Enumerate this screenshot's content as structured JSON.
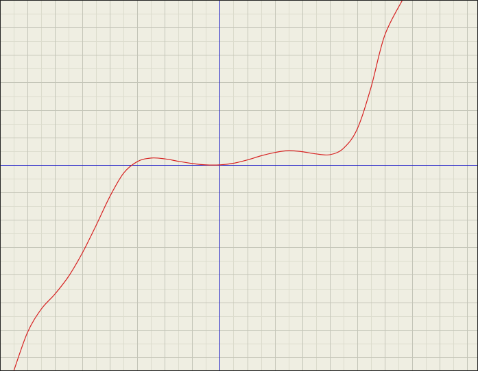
{
  "colors": {
    "background": "#efeee2",
    "grid_minor": "#dcdccd",
    "grid_major": "#c4c5b8",
    "axis": "#1f1fc8",
    "curve": "#d62020",
    "border": "#222222"
  },
  "chart_data": {
    "type": "line",
    "title": "",
    "xlabel": "",
    "ylabel": "",
    "grid": true,
    "grid_minor_step": 0.5,
    "grid_major_step": 1,
    "xlim": [
      -8,
      9.4
    ],
    "ylim": [
      -7.5,
      6
    ],
    "series": [
      {
        "points": [
          [
            -7.5,
            -7.5
          ],
          [
            -7.0,
            -6.1
          ],
          [
            -6.5,
            -5.25
          ],
          [
            -6.0,
            -4.7
          ],
          [
            -5.5,
            -4.05
          ],
          [
            -5.0,
            -3.2
          ],
          [
            -4.5,
            -2.2
          ],
          [
            -4.0,
            -1.15
          ],
          [
            -3.5,
            -0.3
          ],
          [
            -3.0,
            0.12
          ],
          [
            -2.5,
            0.25
          ],
          [
            -2.0,
            0.22
          ],
          [
            -1.5,
            0.13
          ],
          [
            -1.0,
            0.05
          ],
          [
            -0.5,
            0.0
          ],
          [
            0.0,
            0.0
          ],
          [
            0.5,
            0.06
          ],
          [
            1.0,
            0.18
          ],
          [
            1.5,
            0.33
          ],
          [
            2.0,
            0.45
          ],
          [
            2.5,
            0.52
          ],
          [
            3.0,
            0.48
          ],
          [
            3.5,
            0.4
          ],
          [
            4.0,
            0.37
          ],
          [
            4.5,
            0.6
          ],
          [
            5.0,
            1.3
          ],
          [
            5.5,
            2.8
          ],
          [
            6.0,
            4.7
          ],
          [
            6.65,
            6.0
          ]
        ]
      }
    ]
  }
}
